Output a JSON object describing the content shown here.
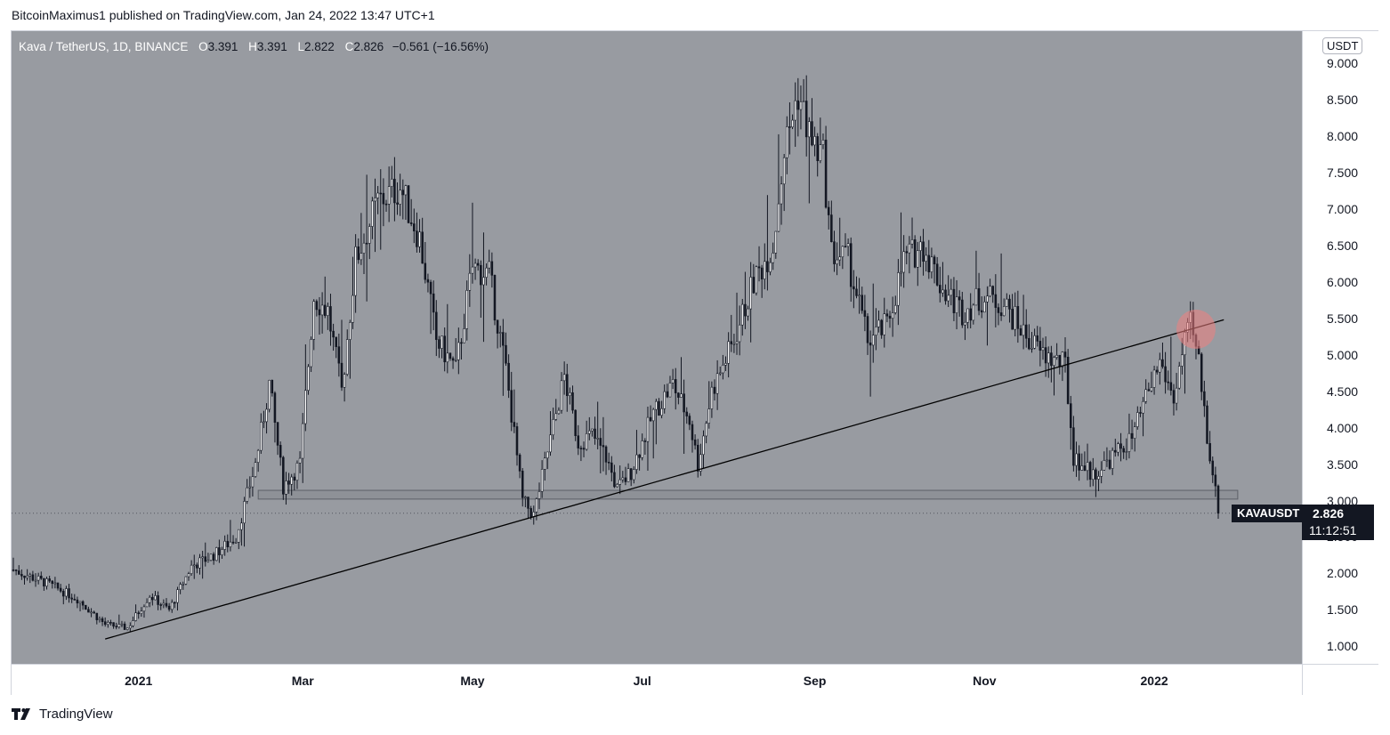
{
  "publish_line": "BitcoinMaximus1 published on TradingView.com, Jan 24, 2022 13:47 UTC+1",
  "legend": {
    "symbol": "Kava / TetherUS, 1D, BINANCE",
    "open_label": "O",
    "open": "3.391",
    "high_label": "H",
    "high": "3.391",
    "low_label": "L",
    "low": "2.822",
    "close_label": "C",
    "close": "2.826",
    "change": "−0.561 (−16.56%)"
  },
  "price_axis": {
    "unit": "USDT",
    "ticks": [
      "9.000",
      "8.500",
      "8.000",
      "7.500",
      "7.000",
      "6.500",
      "6.000",
      "5.500",
      "5.000",
      "4.500",
      "4.000",
      "3.500",
      "3.000",
      "2.500",
      "2.000",
      "1.500",
      "1.000"
    ]
  },
  "time_axis": {
    "ticks": [
      "2021",
      "Mar",
      "May",
      "Jul",
      "Sep",
      "Nov",
      "2022"
    ]
  },
  "last_price": {
    "symbol_label": "KAVAUSDT",
    "price": "2.826",
    "countdown": "11:12:51"
  },
  "brand": {
    "name": "TradingView"
  },
  "colors": {
    "plot_bg": "#989ba1",
    "candle": "#ffffff",
    "candle_down": "#131722",
    "wick": "#131722",
    "highlight": "#f08080"
  },
  "chart_data": {
    "type": "candlestick",
    "timeframe": "1D",
    "x_range": [
      "2020-11-17",
      "2022-01-24"
    ],
    "ylim": [
      0.76,
      9.44
    ],
    "price_series": [
      [
        "2020-11-17",
        2.05
      ],
      [
        "2020-11-30",
        1.85
      ],
      [
        "2020-12-10",
        1.65
      ],
      [
        "2020-12-20",
        1.3
      ],
      [
        "2020-12-28",
        1.25
      ],
      [
        "2021-01-05",
        1.7
      ],
      [
        "2021-01-12",
        1.5
      ],
      [
        "2021-01-20",
        2.1
      ],
      [
        "2021-01-28",
        2.25
      ],
      [
        "2021-02-05",
        2.5
      ],
      [
        "2021-02-12",
        3.5
      ],
      [
        "2021-02-17",
        4.6
      ],
      [
        "2021-02-22",
        3.2
      ],
      [
        "2021-02-28",
        3.5
      ],
      [
        "2021-03-05",
        5.8
      ],
      [
        "2021-03-10",
        5.6
      ],
      [
        "2021-03-15",
        4.5
      ],
      [
        "2021-03-20",
        6.3
      ],
      [
        "2021-03-28",
        7.1
      ],
      [
        "2021-04-05",
        7.3
      ],
      [
        "2021-04-12",
        6.6
      ],
      [
        "2021-04-18",
        5.2
      ],
      [
        "2021-04-25",
        4.8
      ],
      [
        "2021-05-01",
        6.2
      ],
      [
        "2021-05-07",
        6.1
      ],
      [
        "2021-05-13",
        4.8
      ],
      [
        "2021-05-19",
        3.0
      ],
      [
        "2021-05-23",
        2.8
      ],
      [
        "2021-05-27",
        3.5
      ],
      [
        "2021-06-03",
        4.7
      ],
      [
        "2021-06-08",
        3.8
      ],
      [
        "2021-06-13",
        3.9
      ],
      [
        "2021-06-18",
        3.6
      ],
      [
        "2021-06-22",
        3.15
      ],
      [
        "2021-06-27",
        3.4
      ],
      [
        "2021-07-05",
        4.2
      ],
      [
        "2021-07-12",
        4.6
      ],
      [
        "2021-07-18",
        4.1
      ],
      [
        "2021-07-21",
        3.5
      ],
      [
        "2021-07-26",
        4.5
      ],
      [
        "2021-08-03",
        5.2
      ],
      [
        "2021-08-10",
        6.0
      ],
      [
        "2021-08-17",
        6.5
      ],
      [
        "2021-08-21",
        7.8
      ],
      [
        "2021-08-26",
        8.6
      ],
      [
        "2021-08-31",
        7.9
      ],
      [
        "2021-09-04",
        7.7
      ],
      [
        "2021-09-07",
        6.4
      ],
      [
        "2021-09-13",
        6.3
      ],
      [
        "2021-09-20",
        5.2
      ],
      [
        "2021-09-27",
        5.4
      ],
      [
        "2021-10-03",
        6.3
      ],
      [
        "2021-10-10",
        6.5
      ],
      [
        "2021-10-17",
        5.9
      ],
      [
        "2021-10-24",
        5.6
      ],
      [
        "2021-11-01",
        5.8
      ],
      [
        "2021-11-08",
        5.7
      ],
      [
        "2021-11-15",
        5.3
      ],
      [
        "2021-11-22",
        5.0
      ],
      [
        "2021-11-30",
        4.85
      ],
      [
        "2021-12-03",
        3.6
      ],
      [
        "2021-12-10",
        3.35
      ],
      [
        "2021-12-17",
        3.6
      ],
      [
        "2021-12-24",
        3.85
      ],
      [
        "2021-12-30",
        4.5
      ],
      [
        "2022-01-03",
        4.9
      ],
      [
        "2022-01-08",
        4.4
      ],
      [
        "2022-01-11",
        5.0
      ],
      [
        "2022-01-14",
        5.4
      ],
      [
        "2022-01-17",
        4.9
      ],
      [
        "2022-01-20",
        3.9
      ],
      [
        "2022-01-22",
        3.4
      ],
      [
        "2022-01-24",
        2.826
      ]
    ],
    "trendline": {
      "from": [
        "2020-12-20",
        1.1
      ],
      "to": [
        "2022-01-26",
        5.48
      ]
    },
    "support_zone": {
      "from_date": "2021-02-13",
      "to_date": "2022-01-31",
      "y_low": 3.02,
      "y_high": 3.14
    },
    "highlight_circle": {
      "date": "2022-01-16",
      "price": 5.35
    },
    "last": 2.826
  }
}
